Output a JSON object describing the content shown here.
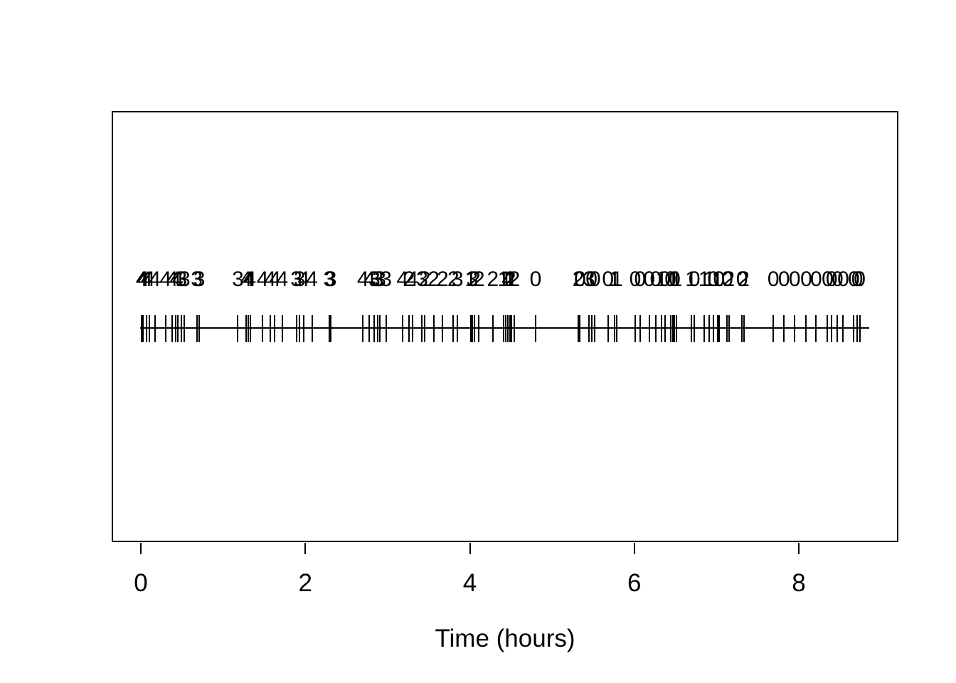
{
  "chart_data": {
    "type": "scatter",
    "subtype": "event-rug-plot",
    "title": "",
    "xlabel": "Time (hours)",
    "ylabel": "",
    "xlim": [
      0,
      8.9
    ],
    "x_ticks": [
      0,
      2,
      4,
      6,
      8
    ],
    "grid": false,
    "legend": "none",
    "marker": "vertical-tick-on-horizontal-line",
    "label_row_note": "integer count printed above each event tick",
    "events": {
      "t": [
        0.01,
        0.03,
        0.07,
        0.1,
        0.17,
        0.3,
        0.38,
        0.42,
        0.45,
        0.49,
        0.53,
        0.68,
        0.71,
        1.18,
        1.28,
        1.31,
        1.33,
        1.48,
        1.57,
        1.63,
        1.72,
        1.89,
        1.93,
        1.98,
        2.08,
        2.29,
        2.31,
        2.7,
        2.78,
        2.84,
        2.88,
        2.91,
        2.98,
        3.18,
        3.26,
        3.3,
        3.42,
        3.45,
        3.56,
        3.67,
        3.8,
        3.85,
        4.01,
        4.03,
        4.06,
        4.11,
        4.28,
        4.41,
        4.44,
        4.46,
        4.49,
        4.51,
        4.54,
        4.8,
        5.32,
        5.34,
        5.45,
        5.48,
        5.52,
        5.68,
        5.76,
        5.79,
        6.01,
        6.07,
        6.18,
        6.26,
        6.33,
        6.37,
        6.44,
        6.47,
        6.49,
        6.51,
        6.69,
        6.73,
        6.85,
        6.91,
        6.96,
        7.01,
        7.03,
        7.13,
        7.15,
        7.31,
        7.33,
        7.69,
        7.82,
        7.95,
        8.09,
        8.21,
        8.35,
        8.4,
        8.47,
        8.54,
        8.67,
        8.71,
        8.74
      ],
      "labels": [
        4,
        4,
        4,
        4,
        4,
        4,
        4,
        4,
        4,
        3,
        3,
        3,
        3,
        3,
        4,
        4,
        4,
        4,
        4,
        4,
        4,
        3,
        3,
        4,
        4,
        3,
        3,
        4,
        4,
        3,
        3,
        3,
        3,
        4,
        2,
        4,
        3,
        2,
        2,
        2,
        2,
        3,
        1,
        3,
        2,
        2,
        2,
        1,
        1,
        4,
        2,
        1,
        2,
        0,
        2,
        0,
        3,
        0,
        0,
        0,
        1,
        1,
        0,
        0,
        0,
        0,
        1,
        0,
        0,
        1,
        0,
        1,
        1,
        0,
        1,
        1,
        0,
        1,
        0,
        0,
        2,
        0,
        2,
        0,
        0,
        0,
        0,
        0,
        0,
        0,
        0,
        0,
        0,
        0,
        0
      ]
    },
    "colors": {
      "foreground": "#000000",
      "background": "#ffffff"
    }
  }
}
